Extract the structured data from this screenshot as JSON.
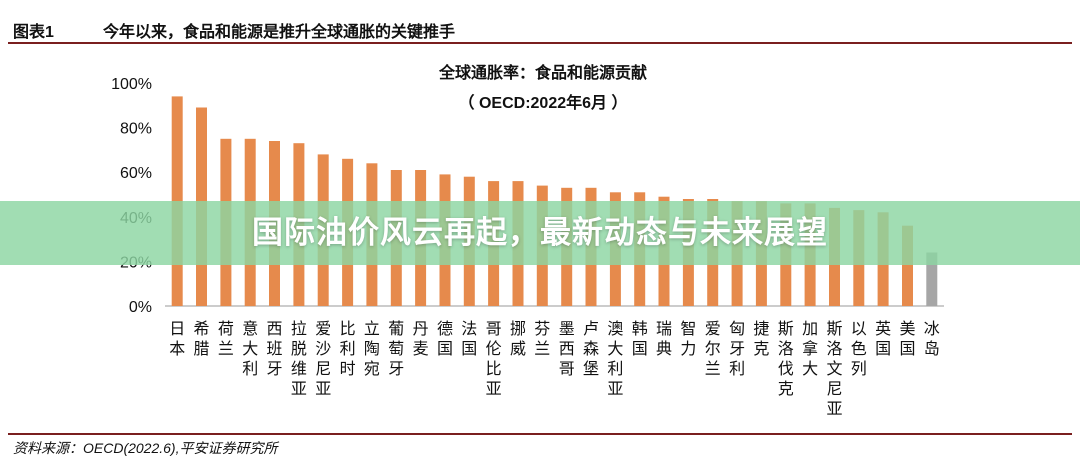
{
  "header": {
    "figure_number": "图表1",
    "figure_title": "今年以来，食品和能源是推升全球通胀的关键推手"
  },
  "source_note": "资料来源：OECD(2022.6),平安证券研究所",
  "banner": {
    "text": "国际油价风云再起，最新动态与未来展望"
  },
  "colors": {
    "bar": "#E68A4C",
    "bar_highlight": "#A6A6A6",
    "rule": "#7A1F1F",
    "banner": "#8CD6A2"
  },
  "chart_data": {
    "type": "bar",
    "title": "全球通胀率：食品和能源贡献",
    "subtitle": "（ OECD:2022年6月 ）",
    "categories": [
      "日本",
      "希腊",
      "荷兰",
      "意大利",
      "西班牙",
      "拉脱维亚",
      "爱沙尼亚",
      "比利时",
      "立陶宛",
      "葡萄牙",
      "丹麦",
      "德国",
      "法国",
      "哥伦比亚",
      "挪威",
      "芬兰",
      "墨西哥",
      "卢森堡",
      "澳大利亚",
      "韩国",
      "瑞典",
      "智力",
      "爱尔兰",
      "匈牙利",
      "捷克",
      "斯洛伐克",
      "加拿大",
      "斯洛文尼亚",
      "以色列",
      "英国",
      "美国",
      "冰岛"
    ],
    "values": [
      94,
      89,
      75,
      75,
      74,
      73,
      68,
      66,
      64,
      61,
      61,
      59,
      58,
      56,
      56,
      54,
      53,
      53,
      51,
      51,
      49,
      48,
      48,
      47,
      47,
      46,
      46,
      44,
      43,
      42,
      36,
      24
    ],
    "yticks": [
      "0%",
      "20%",
      "40%",
      "60%",
      "80%",
      "100%"
    ],
    "ylim": [
      0,
      100
    ],
    "xlabel": "",
    "ylabel": "",
    "grid": false
  }
}
